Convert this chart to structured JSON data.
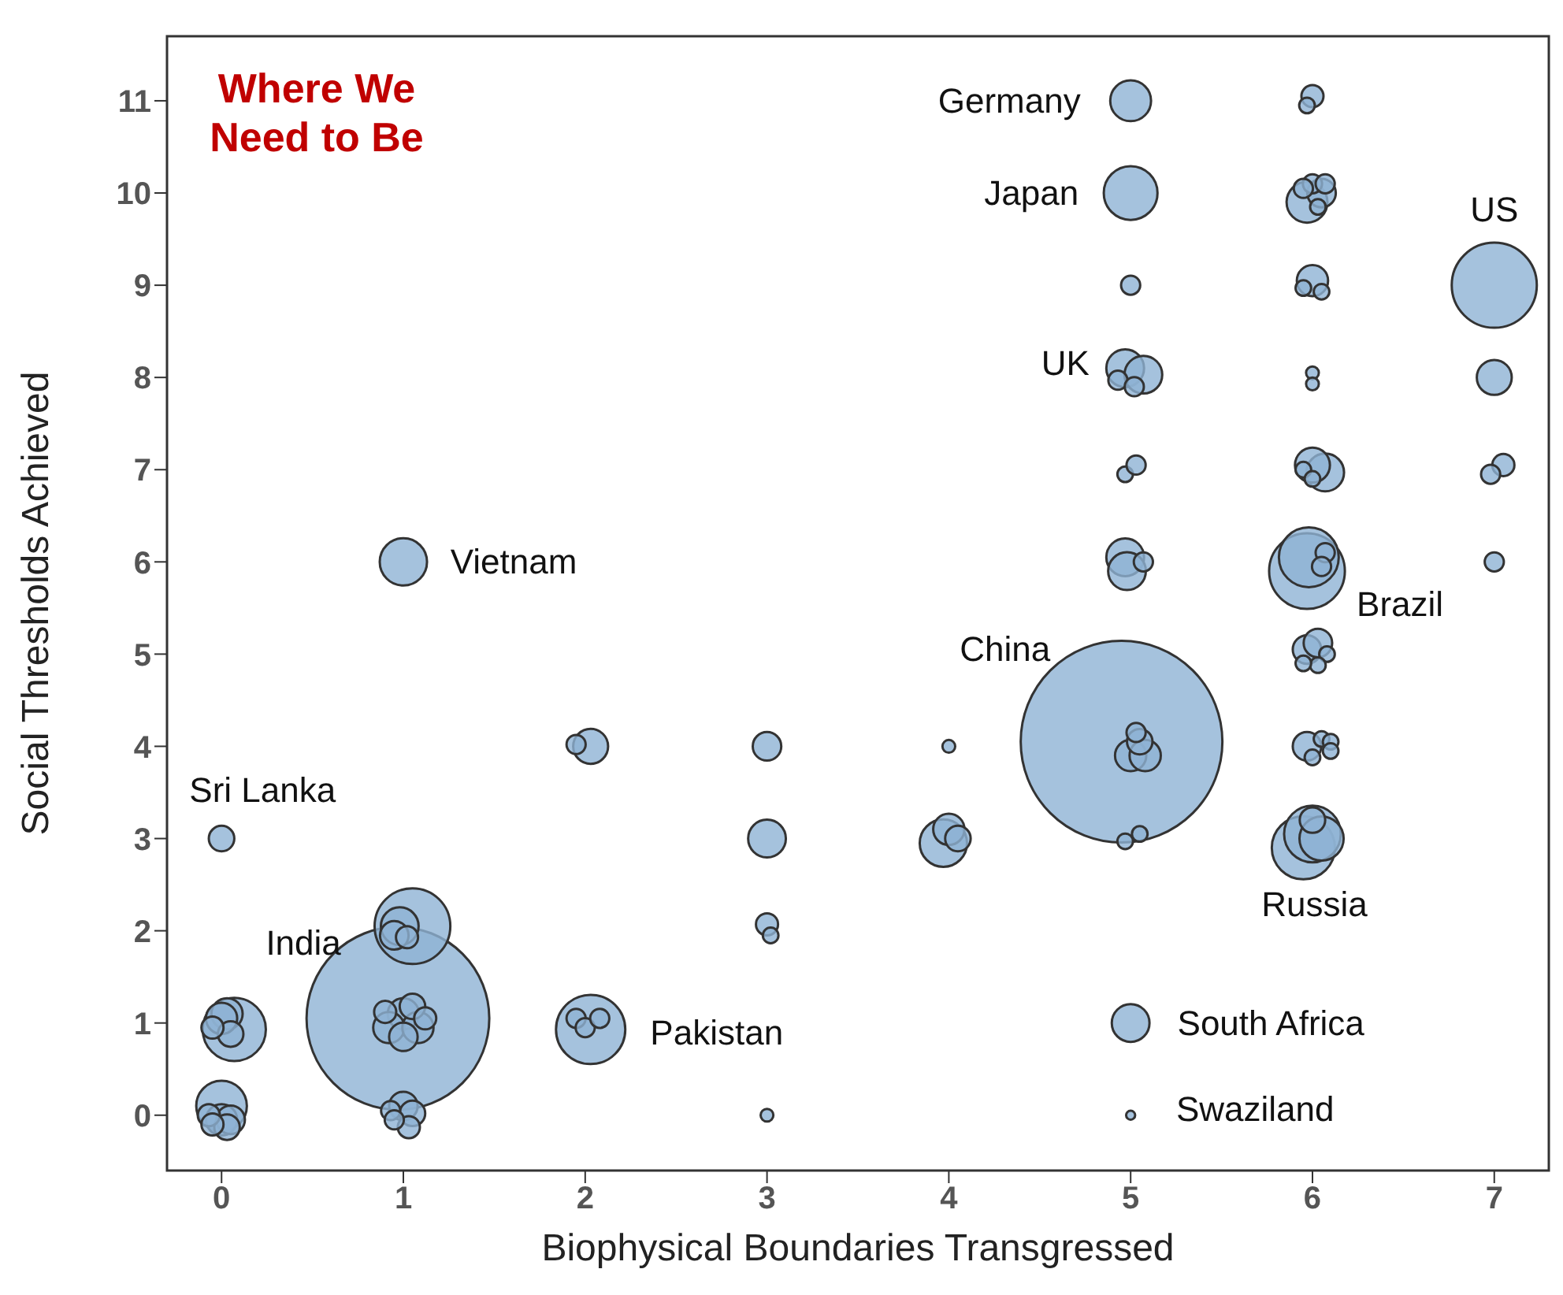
{
  "chart_data": {
    "type": "bubble",
    "title": "Where We Need to Be",
    "xlabel": "Biophysical Boundaries Transgressed",
    "ylabel": "Social Thresholds Achieved",
    "xlim": [
      -0.3,
      7.3
    ],
    "xticks": [
      0,
      1,
      2,
      3,
      4,
      5,
      6,
      7
    ],
    "ylim": [
      -0.6,
      11.7
    ],
    "yticks": [
      0,
      1,
      2,
      3,
      4,
      5,
      6,
      7,
      8,
      9,
      10,
      11
    ],
    "marker": "circle",
    "series": [
      {
        "color": "#8fb3d4",
        "x": [
          4.95,
          0.97,
          7.0,
          1.05,
          5.97,
          5.95,
          0.07,
          2.03,
          5.98,
          6.0,
          5.0,
          0.0,
          3.97,
          1.0,
          6.05,
          5.0,
          5.97,
          4.97,
          5.07,
          4.97,
          4.98,
          3.0,
          6.07,
          5.0,
          7.0,
          6.0,
          2.03,
          0.98,
          4.0,
          5.0,
          5.08,
          6.0,
          0.03,
          0.0,
          1.0,
          0.92,
          1.08,
          0.0,
          1.0,
          6.05,
          5.97,
          6.03,
          5.97,
          3.0,
          0.05,
          0.95,
          1.0,
          1.05,
          5.05,
          0.05,
          6.0,
          1.05,
          4.05,
          0.03,
          1.03,
          1.02,
          3.0,
          1.12,
          0.9,
          6.0,
          5.03,
          7.05,
          6.0,
          6.07,
          5.95,
          6.03,
          1.95,
          0.93,
          5.07,
          4.97,
          4.93,
          5.02,
          5.03,
          5.0,
          5.95,
          6.05,
          6.07,
          6.05,
          5.95,
          6.0,
          6.08,
          6.03,
          5.95,
          6.05,
          6.1,
          6.1,
          6.0,
          5.97,
          1.95,
          2.0,
          2.08,
          3.02,
          4.97,
          5.05,
          0.95,
          6.98,
          7.0,
          -0.05,
          -0.07,
          -0.05,
          6.0,
          6.0,
          4.0,
          3.0,
          5.0,
          0.0
        ],
        "values": [
          4.05,
          1.05,
          9.0,
          2.05,
          5.9,
          2.9,
          0.93,
          0.93,
          6.05,
          3.05,
          10.0,
          0.1,
          2.95,
          6.0,
          3.0,
          11.0,
          9.9,
          8.1,
          8.03,
          6.05,
          5.9,
          3.0,
          6.97,
          1.0,
          8.0,
          7.05,
          4.0,
          2.05,
          3.1,
          3.9,
          3.9,
          9.05,
          1.1,
          1.05,
          1.1,
          0.95,
          0.95,
          -0.05,
          0.1,
          10.0,
          5.05,
          5.12,
          4.0,
          4.0,
          -0.05,
          1.95,
          0.85,
          0.02,
          4.05,
          0.88,
          3.2,
          1.18,
          3.0,
          -0.13,
          -0.13,
          1.93,
          2.07,
          1.05,
          1.12,
          11.05,
          4.15,
          7.05,
          10.1,
          10.1,
          10.05,
          9.85,
          4.02,
          0.05,
          6.0,
          6.95,
          7.97,
          7.9,
          7.05,
          9.0,
          8.97,
          8.93,
          6.1,
          5.95,
          7.0,
          6.9,
          5.0,
          4.88,
          4.9,
          4.08,
          4.05,
          3.95,
          3.88,
          10.95,
          1.05,
          0.95,
          1.05,
          1.95,
          2.97,
          3.05,
          -0.05,
          6.95,
          6.0,
          0.95,
          0.0,
          -0.1,
          8.05,
          7.93,
          4.0,
          0.0,
          0.0,
          3.0
        ],
        "sizes": [
          1,
          0.821,
          0.178,
          0.141,
          0.141,
          0.098,
          0.098,
          0.118,
          0.088,
          0.079,
          0.071,
          0.063,
          0.055,
          0.055,
          0.048,
          0.041,
          0.041,
          0.035,
          0.035,
          0.035,
          0.035,
          0.035,
          0.035,
          0.035,
          0.03,
          0.03,
          0.03,
          0.035,
          0.024,
          0.024,
          0.024,
          0.024,
          0.024,
          0.024,
          0.024,
          0.024,
          0.024,
          0.024,
          0.02,
          0.02,
          0.02,
          0.02,
          0.02,
          0.02,
          0.02,
          0.02,
          0.02,
          0.016,
          0.016,
          0.016,
          0.016,
          0.016,
          0.016,
          0.016,
          0.012,
          0.012,
          0.012,
          0.012,
          0.012,
          0.012,
          0.009,
          0.012,
          0.009,
          0.009,
          0.009,
          0.006,
          0.009,
          0.009,
          0.009,
          0.006,
          0.009,
          0.009,
          0.009,
          0.009,
          0.006,
          0.006,
          0.009,
          0.009,
          0.006,
          0.006,
          0.006,
          0.006,
          0.006,
          0.006,
          0.006,
          0.006,
          0.006,
          0.006,
          0.009,
          0.009,
          0.009,
          0.006,
          0.006,
          0.006,
          0.009,
          0.009,
          0.009,
          0.012,
          0.012,
          0.012,
          0.004,
          0.004,
          0.004,
          0.004,
          0.002,
          0.016
        ]
      }
    ],
    "annotations": [
      {
        "text": "Germany",
        "x": 5.0,
        "y": 11.0
      },
      {
        "text": "Japan",
        "x": 5.0,
        "y": 10.0
      },
      {
        "text": "US",
        "x": 7.0,
        "y": 9.0
      },
      {
        "text": "UK",
        "x": 4.97,
        "y": 8.1
      },
      {
        "text": "Vietnam",
        "x": 1.0,
        "y": 6.0
      },
      {
        "text": "Brazil",
        "x": 5.97,
        "y": 5.9
      },
      {
        "text": "China",
        "x": 4.95,
        "y": 4.05
      },
      {
        "text": "Sri Lanka",
        "x": 0.0,
        "y": 3.0
      },
      {
        "text": "Russia",
        "x": 5.95,
        "y": 2.9
      },
      {
        "text": "India",
        "x": 0.97,
        "y": 1.05
      },
      {
        "text": "Pakistan",
        "x": 2.03,
        "y": 0.93
      },
      {
        "text": "South Africa",
        "x": 5.0,
        "y": 1.0
      },
      {
        "text": "Swaziland",
        "x": 5.0,
        "y": 0.0
      }
    ]
  }
}
